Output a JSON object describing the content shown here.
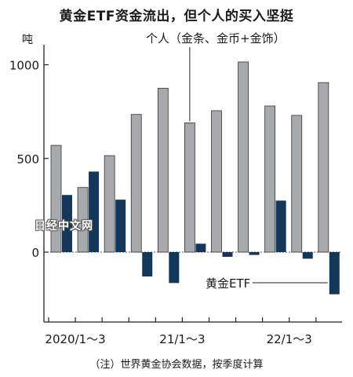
{
  "title": "黄金ETF资金流出，但个人的买入坚挺",
  "footnote": "（注）世界黄金协会数据，按季度计算",
  "watermark": "日经中文网",
  "colors": {
    "individual": "#a7a9ac",
    "etf": "#13375a",
    "axis": "#222222",
    "grid": "#555555"
  },
  "chart_data": {
    "type": "bar",
    "ylabel": "吨",
    "ylim": [
      -380,
      1150
    ],
    "yticks": [
      0,
      500,
      1000
    ],
    "x_tick_labels": [
      {
        "label": "2020/1～3",
        "index": 0
      },
      {
        "label": "21/1～3",
        "index": 4
      },
      {
        "label": "22/1～3",
        "index": 8
      }
    ],
    "categories": [
      "2020Q1",
      "2020Q2",
      "2020Q3",
      "2020Q4",
      "2021Q1",
      "2021Q2",
      "2021Q3",
      "2021Q4",
      "2022Q1",
      "2022Q2",
      "2022Q3",
      "2022Q4"
    ],
    "series": [
      {
        "name": "个人（金条、金币+金饰）",
        "values": [
          570,
          345,
          515,
          735,
          875,
          690,
          755,
          1015,
          780,
          730,
          905,
          null
        ]
      },
      {
        "name": "黄金ETF",
        "values": [
          305,
          430,
          280,
          -130,
          -165,
          45,
          -25,
          -15,
          275,
          -35,
          -225,
          null
        ]
      }
    ]
  }
}
